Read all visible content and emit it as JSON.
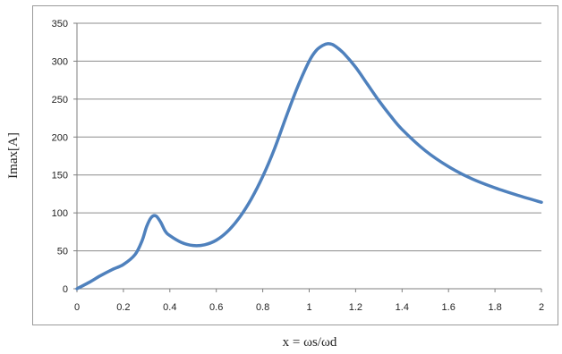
{
  "chart_data": {
    "type": "line",
    "title": "",
    "xlabel": "x = ωs/ωd",
    "ylabel": "Imax[A]",
    "xlim": [
      0,
      2
    ],
    "ylim": [
      0,
      350
    ],
    "x_ticks": [
      "0",
      "0.2",
      "0.4",
      "0.6",
      "0.8",
      "1",
      "1.2",
      "1.4",
      "1.6",
      "1.8",
      "2"
    ],
    "y_ticks": [
      "0",
      "50",
      "100",
      "150",
      "200",
      "250",
      "300",
      "350"
    ],
    "grid": "horizontal",
    "legend": "none",
    "colors": {
      "series": "#4f81bd",
      "grid": "#8c8c8c",
      "frame": "#9a9a9a"
    },
    "series": [
      {
        "x": [
          0,
          0.05,
          0.1,
          0.15,
          0.2,
          0.25,
          0.28,
          0.3,
          0.32,
          0.34,
          0.36,
          0.38,
          0.4,
          0.45,
          0.5,
          0.55,
          0.6,
          0.65,
          0.7,
          0.75,
          0.8,
          0.85,
          0.9,
          0.95,
          1.0,
          1.03,
          1.06,
          1.08,
          1.1,
          1.12,
          1.15,
          1.2,
          1.25,
          1.3,
          1.35,
          1.4,
          1.5,
          1.6,
          1.7,
          1.8,
          1.9,
          2.0
        ],
        "values": [
          0,
          8,
          17,
          25,
          32,
          45,
          63,
          82,
          94,
          96,
          88,
          76,
          70,
          61,
          57,
          58,
          64,
          76,
          94,
          118,
          148,
          184,
          226,
          266,
          300,
          314,
          321,
          323,
          322,
          318,
          310,
          292,
          270,
          248,
          228,
          210,
          182,
          161,
          145,
          133,
          123,
          114
        ]
      }
    ]
  }
}
